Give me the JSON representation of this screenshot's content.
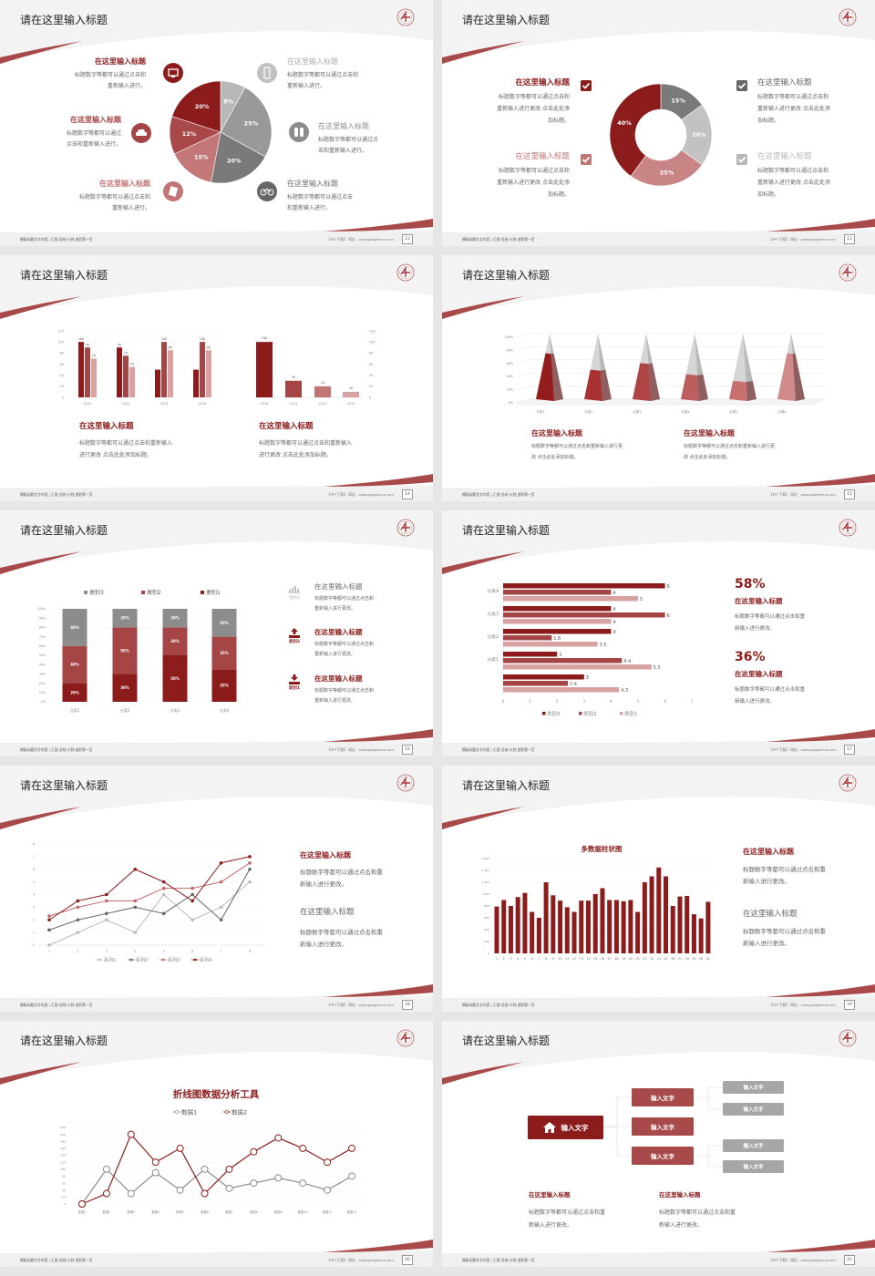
{
  "footer": {
    "left": "模板标题文字内容 | 汇报·总结·计划·述职第一页",
    "right": "【PPT下载】 网址：www.pptgenius.com"
  },
  "colors": {
    "dark_red": "#8c1c1c",
    "mid_red": "#a64545",
    "light_red": "#c27575",
    "pale_red": "#d9a2a2",
    "dark_gray": "#666666",
    "gray": "#8c8c8c",
    "light_gray": "#b8b8b8"
  },
  "slides": [
    {
      "title": "请在这里输入标题",
      "page": "12",
      "items": [
        {
          "title": "在这里输入标题",
          "icon": "monitor-icon",
          "lines": [
            "标题数字等都可以通过点击和",
            "重新输入进行。"
          ]
        },
        {
          "title": "在这里输入标题",
          "icon": "car-icon",
          "lines": [
            "标题数字等都可以通过",
            "点击和重新输入进行。"
          ]
        },
        {
          "title": "在这里输入标题",
          "icon": "book-icon",
          "lines": [
            "标题数字等都可以通过点击和",
            "重新输入进行。"
          ]
        },
        {
          "title": "在这里输入标题",
          "icon": "phone-icon",
          "lines": [
            "标题数字等都可以通过点击和",
            "重新输入进行。"
          ]
        },
        {
          "title": "在这里输入标题",
          "icon": "binoculars-icon",
          "lines": [
            "标题数字等都可以通过点",
            "击和重新输入进行。"
          ]
        },
        {
          "title": "在这里输入标题",
          "icon": "bicycle-icon",
          "lines": [
            "标题数字等都可以通过点击",
            "和重新输入进行。"
          ]
        }
      ]
    },
    {
      "title": "请在这里输入标题",
      "page": "13",
      "items": [
        {
          "title": "在这里输入标题",
          "checked": true,
          "lines": [
            "标题数字等都可以通过点击和",
            "重新输入进行更改 点击此处添",
            "加标题。"
          ]
        },
        {
          "title": "在这里输入标题",
          "checked": true,
          "lines": [
            "标题数字等都可以通过点击和",
            "重新输入进行更改 点击此处添",
            "加标题。"
          ]
        },
        {
          "title": "在这里输入标题",
          "checked": true,
          "lines": [
            "标题数字等都可以通过点击和",
            "重新输入进行更改 点击此处添",
            "加标题。"
          ]
        },
        {
          "title": "在这里输入标题",
          "checked": true,
          "lines": [
            "标题数字等都可以通过点击和",
            "重新输入进行更改 点击此处添",
            "加标题。"
          ]
        }
      ]
    },
    {
      "title": "请在这里输入标题",
      "page": "14",
      "items": [
        {
          "title": "在这里输入标题",
          "lines": [
            "标题数字等都可以通过点击和重新输入",
            "进行更改 点击此处添加标题。"
          ]
        },
        {
          "title": "在这里输入标题",
          "lines": [
            "标题数字等都可以通过点击和重新输入",
            "进行更改 点击此处添加标题。"
          ]
        }
      ]
    },
    {
      "title": "请在这里输入标题",
      "page": "15",
      "items": [
        {
          "title": "在这里输入标题",
          "lines": [
            "标题数字等都可以通过点击和重新输入进行更",
            "改 点击此处添加标题。"
          ]
        },
        {
          "title": "在这里输入标题",
          "lines": [
            "标题数字等都可以通过点击和重新输入进行更",
            "改 点击此处添加标题。"
          ]
        }
      ]
    },
    {
      "title": "请在这里输入标题",
      "page": "16",
      "items": [
        {
          "title": "在这里输入标题",
          "icon": "bar-chart-icon",
          "icon_label": "类别3",
          "lines": [
            "标题数字等都可以通过点击和",
            "重新输入进行更改。"
          ]
        },
        {
          "title": "在这里输入标题",
          "icon": "upload-icon",
          "icon_label": "类别2",
          "lines": [
            "标题数字等都可以通过点击和",
            "重新输入进行更改。"
          ]
        },
        {
          "title": "在这里输入标题",
          "icon": "download-icon",
          "icon_label": "类别1",
          "lines": [
            "标题数字等都可以通过点击和",
            "重新输入进行更改。"
          ]
        }
      ]
    },
    {
      "title": "请在这里输入标题",
      "page": "17",
      "items": [
        {
          "percent": "58%",
          "title": "在这里输入标题",
          "lines": [
            "标题数字等都可以通过点击和重",
            "新输入进行更改。"
          ]
        },
        {
          "percent": "36%",
          "title": "在这里输入标题",
          "lines": [
            "标题数字等都可以通过点击和重",
            "新输入进行更改。"
          ]
        }
      ]
    },
    {
      "title": "请在这里输入标题",
      "page": "18",
      "items": [
        {
          "title": "在这里输入标题",
          "lines": [
            "标题数字等都可以通过点击和重",
            "新输入进行更改。"
          ]
        },
        {
          "title": "在这里输入标题",
          "lines": [
            "标题数字等都可以通过点击和重",
            "新输入进行更改。"
          ]
        }
      ]
    },
    {
      "title": "请在这里输入标题",
      "page": "19",
      "items": [
        {
          "title": "在这里输入标题",
          "lines": [
            "标题数字等都可以通过点击和重",
            "新输入进行更改。"
          ]
        },
        {
          "title": "在这里输入标题",
          "lines": [
            "标题数字等都可以通过点击和重",
            "新输入进行更改。"
          ]
        }
      ]
    },
    {
      "title": "请在这里输入标题",
      "page": "20",
      "items": []
    },
    {
      "title": "请在这里输入标题",
      "page": "21",
      "tree": {
        "root": "输入文字",
        "root_icon": "home-icon",
        "mid": [
          "输入文字",
          "输入文字",
          "输入文字"
        ],
        "leaf": [
          "输入文字",
          "输入文字",
          "输入文字",
          "输入文字"
        ]
      },
      "items": [
        {
          "title": "在这里输入标题",
          "lines": [
            "标题数字等都可以通过点击和重",
            "新输入进行更改。"
          ]
        },
        {
          "title": "在这里输入标题",
          "lines": [
            "标题数字等都可以通过点击和重",
            "新输入进行更改。"
          ]
        }
      ]
    }
  ],
  "chart_data": [
    {
      "type": "pie",
      "values": [
        8,
        25,
        20,
        15,
        12,
        20
      ],
      "labels": [
        "8%",
        "25%",
        "20%",
        "15%",
        "12%",
        "20%"
      ],
      "colors": [
        "#b8b8b8",
        "#999999",
        "#7a7a7a",
        "#c47777",
        "#a84848",
        "#8c1c1c"
      ]
    },
    {
      "type": "pie",
      "donut": true,
      "values": [
        15,
        20,
        25,
        40
      ],
      "labels": [
        "15%",
        "20%",
        "25%",
        "40%"
      ],
      "colors": [
        "#7a7a7a",
        "#c2c2c2",
        "#c98585",
        "#8c1c1c"
      ]
    },
    {
      "type": "bar",
      "categories": [
        "2010",
        "2012",
        "2014",
        "2016"
      ],
      "series": [
        {
          "values": [
            100,
            90,
            50,
            50
          ]
        },
        {
          "values": [
            90,
            75,
            100,
            100
          ]
        },
        {
          "values": [
            70,
            55,
            85,
            85
          ]
        }
      ],
      "data_labels": [
        [
          "100",
          "90",
          "70"
        ],
        [
          "90",
          "75",
          "55"
        ],
        [
          "",
          "100",
          "85"
        ],
        [
          "",
          "100",
          "85"
        ]
      ],
      "ylim": [
        0,
        120
      ],
      "yticks": [
        "0",
        "20",
        "40",
        "60",
        "80",
        "100",
        "120"
      ]
    },
    {
      "type": "bar",
      "categories": [
        "2016",
        "2014",
        "2012",
        "2010"
      ],
      "values": [
        100,
        30,
        20,
        10
      ],
      "data_labels": [
        "100",
        "30",
        "20",
        "10"
      ],
      "ylim": [
        0,
        120
      ],
      "yticks": [
        "0",
        "20",
        "40",
        "60",
        "80",
        "100",
        "120"
      ],
      "axis": "right"
    },
    {
      "type": "bar",
      "style": "3d-pyramid",
      "categories": [
        "分类1",
        "分类2",
        "分类3",
        "分类4",
        "分类5",
        "分类6"
      ],
      "values": [
        70,
        45,
        55,
        38,
        28,
        70
      ],
      "ylim": [
        0,
        100
      ],
      "yticks": [
        "0%",
        "20%",
        "40%",
        "60%",
        "80%",
        "100%"
      ]
    },
    {
      "type": "bar",
      "stacked": true,
      "categories": [
        "分类1",
        "分类2",
        "分类3",
        "分类4"
      ],
      "series": [
        {
          "name": "类别1",
          "values": [
            20,
            30,
            50,
            35
          ],
          "labels": [
            "20%",
            "30%",
            "50%",
            "35%"
          ]
        },
        {
          "name": "类别2",
          "values": [
            40,
            50,
            30,
            35
          ],
          "labels": [
            "40%",
            "50%",
            "30%",
            "35%"
          ]
        },
        {
          "name": "类别3",
          "values": [
            40,
            20,
            20,
            30
          ],
          "labels": [
            "40%",
            "20%",
            "20%",
            "30%"
          ]
        }
      ],
      "legend_order": [
        "类别3",
        "类别2",
        "类别1"
      ],
      "legend": "top",
      "ylim": [
        0,
        100
      ],
      "yticks": [
        "0%",
        "10%",
        "20%",
        "30%",
        "40%",
        "50%",
        "60%",
        "70%",
        "80%",
        "90%",
        "100%"
      ]
    },
    {
      "type": "bar",
      "orientation": "horizontal",
      "categories": [
        "分类4",
        "分类3",
        "分类2",
        "分类1",
        ""
      ],
      "series": [
        {
          "name": "类别3",
          "values": [
            6,
            4,
            4,
            2,
            3
          ],
          "labels": [
            "6",
            "4",
            "4",
            "2",
            "3"
          ]
        },
        {
          "name": "类别2",
          "values": [
            4,
            6,
            1.8,
            4.4,
            2.4
          ],
          "labels": [
            "4",
            "6",
            "1.8",
            "4.4",
            "2.4"
          ]
        },
        {
          "name": "类别1",
          "values": [
            5,
            4,
            3.5,
            5.5,
            4.3
          ],
          "labels": [
            "5",
            "4",
            "3.5",
            "5.5",
            "4.3"
          ]
        }
      ],
      "xlim": [
        0,
        7
      ],
      "xticks": [
        "0",
        "1",
        "2",
        "3",
        "4",
        "5",
        "6",
        "7"
      ],
      "legend": "bottom"
    },
    {
      "type": "line",
      "x": [
        "1",
        "2",
        "3",
        "4",
        "5",
        "6",
        "7",
        "8"
      ],
      "series": [
        {
          "name": "系列1",
          "values": [
            0,
            1,
            2,
            1,
            4,
            2,
            3,
            5
          ]
        },
        {
          "name": "系列2",
          "values": [
            1.2,
            2,
            2.5,
            3,
            2.5,
            4,
            2,
            6
          ]
        },
        {
          "name": "系列3",
          "values": [
            2.3,
            3,
            3.5,
            3.5,
            4.5,
            4.5,
            5,
            6.5
          ]
        },
        {
          "name": "系列4",
          "values": [
            2,
            3.5,
            4,
            6,
            5,
            3.5,
            6.5,
            7
          ]
        }
      ],
      "ylim": [
        0,
        8
      ],
      "yticks": [
        "0",
        "1",
        "2",
        "3",
        "4",
        "5",
        "6",
        "7",
        "8"
      ],
      "legend": "bottom"
    },
    {
      "type": "bar",
      "title": "多数据柱状图",
      "categories": [
        "1",
        "2",
        "3",
        "4",
        "5",
        "6",
        "7",
        "8",
        "9",
        "10",
        "11",
        "12",
        "13",
        "14",
        "15",
        "16",
        "17",
        "18",
        "19",
        "20",
        "21",
        "22",
        "23",
        "24",
        "25",
        "26",
        "27",
        "28",
        "29",
        "30",
        "31"
      ],
      "values": [
        790,
        900,
        800,
        950,
        1020,
        700,
        600,
        1200,
        980,
        890,
        780,
        700,
        890,
        890,
        1000,
        1100,
        900,
        900,
        880,
        900,
        700,
        1200,
        1300,
        1450,
        1300,
        800,
        960,
        970,
        660,
        590,
        870
      ],
      "ylim": [
        0,
        1600
      ],
      "yticks": [
        "0",
        "200",
        "400",
        "600",
        "800",
        "1,000",
        "1,200",
        "1,400",
        "1,600"
      ]
    },
    {
      "type": "line",
      "title": "折线图数据分析工具",
      "x": [
        "数据1",
        "数据2",
        "数据3",
        "数据4",
        "数据5",
        "数据6",
        "数据7",
        "数据8",
        "数据9",
        "数据10",
        "数据11",
        "数据12"
      ],
      "series": [
        {
          "name": "数据1",
          "values": [
            0,
            100,
            30,
            90,
            40,
            100,
            45,
            60,
            75,
            60,
            40,
            80
          ]
        },
        {
          "name": "数据2",
          "values": [
            0,
            30,
            200,
            120,
            160,
            30,
            100,
            150,
            190,
            160,
            120,
            160
          ]
        }
      ],
      "ylim": [
        0,
        220
      ],
      "yticks": [
        "0",
        "20",
        "40",
        "60",
        "80",
        "100",
        "120",
        "140",
        "160",
        "180",
        "200",
        "220"
      ],
      "legend": "top"
    }
  ]
}
